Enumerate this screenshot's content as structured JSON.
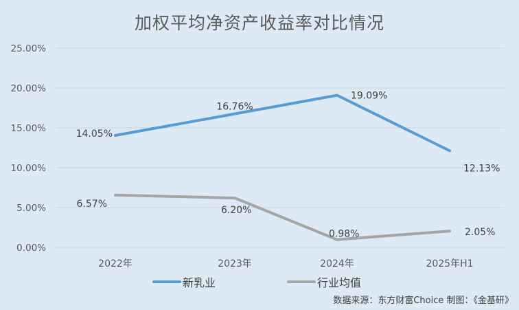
{
  "chart_data": {
    "type": "line",
    "title": "加权平均净资产收益率对比情况",
    "xlabel": "",
    "ylabel": "",
    "categories": [
      "2022年",
      "2023年",
      "2024年",
      "2025年H1"
    ],
    "series": [
      {
        "name": "新乳业",
        "color": "#5b9bd5",
        "values": [
          14.05,
          16.76,
          19.09,
          12.13
        ],
        "labels": [
          "14.05%",
          "16.76%",
          "19.09%",
          "12.13%"
        ]
      },
      {
        "name": "行业均值",
        "color": "#a5a5a5",
        "values": [
          6.57,
          6.2,
          0.98,
          2.05
        ],
        "labels": [
          "6.57%",
          "6.20%",
          "0.98%",
          "2.05%"
        ]
      }
    ],
    "ylim": [
      0,
      25
    ],
    "yticks": [
      "0.00%",
      "5.00%",
      "10.00%",
      "15.00%",
      "20.00%",
      "25.00%"
    ],
    "grid": true,
    "legend_position": "bottom",
    "source": "数据来源：东方财富Choice  制图：《金基研》"
  }
}
